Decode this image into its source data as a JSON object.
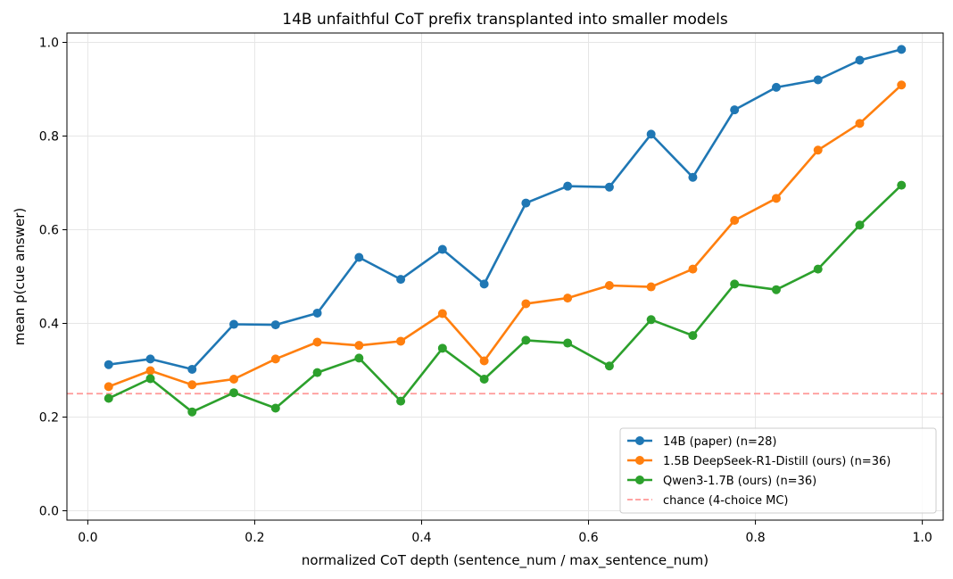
{
  "chart_data": {
    "type": "line",
    "title": "14B unfaithful CoT prefix transplanted into smaller models",
    "xlabel": "normalized CoT depth (sentence_num / max_sentence_num)",
    "ylabel": "mean p(cue answer)",
    "xlim": [
      -0.025,
      1.025
    ],
    "ylim": [
      -0.02,
      1.02
    ],
    "xticks": [
      0.0,
      0.2,
      0.4,
      0.6,
      0.8,
      1.0
    ],
    "xtick_labels": [
      "0.0",
      "0.2",
      "0.4",
      "0.6",
      "0.8",
      "1.0"
    ],
    "yticks": [
      0.0,
      0.2,
      0.4,
      0.6,
      0.8,
      1.0
    ],
    "ytick_labels": [
      "0.0",
      "0.2",
      "0.4",
      "0.6",
      "0.8",
      "1.0"
    ],
    "grid": true,
    "legend_position": "lower-right",
    "x": [
      0.025,
      0.075,
      0.125,
      0.175,
      0.225,
      0.275,
      0.325,
      0.375,
      0.425,
      0.475,
      0.525,
      0.575,
      0.625,
      0.675,
      0.725,
      0.775,
      0.825,
      0.875,
      0.925,
      0.975
    ],
    "series": [
      {
        "name": "14B (paper)  (n=28)",
        "color": "#1f77b4",
        "values": [
          0.312,
          0.324,
          0.302,
          0.398,
          0.397,
          0.422,
          0.541,
          0.494,
          0.558,
          0.484,
          0.657,
          0.693,
          0.691,
          0.804,
          0.712,
          0.856,
          0.904,
          0.92,
          0.962,
          0.985
        ]
      },
      {
        "name": "1.5B DeepSeek-R1-Distill (ours)  (n=36)",
        "color": "#ff7f0e",
        "values": [
          0.265,
          0.299,
          0.269,
          0.281,
          0.324,
          0.36,
          0.353,
          0.362,
          0.421,
          0.32,
          0.442,
          0.454,
          0.481,
          0.478,
          0.516,
          0.62,
          0.667,
          0.77,
          0.827,
          0.909
        ]
      },
      {
        "name": "Qwen3-1.7B (ours)  (n=36)",
        "color": "#2ca02c",
        "values": [
          0.24,
          0.282,
          0.211,
          0.252,
          0.219,
          0.295,
          0.326,
          0.234,
          0.347,
          0.281,
          0.364,
          0.358,
          0.309,
          0.408,
          0.374,
          0.484,
          0.472,
          0.516,
          0.61,
          0.695
        ]
      }
    ],
    "reference_lines": [
      {
        "name": "chance (4-choice MC)",
        "y": 0.25,
        "color": "#ff9896",
        "style": "dashed"
      }
    ]
  }
}
